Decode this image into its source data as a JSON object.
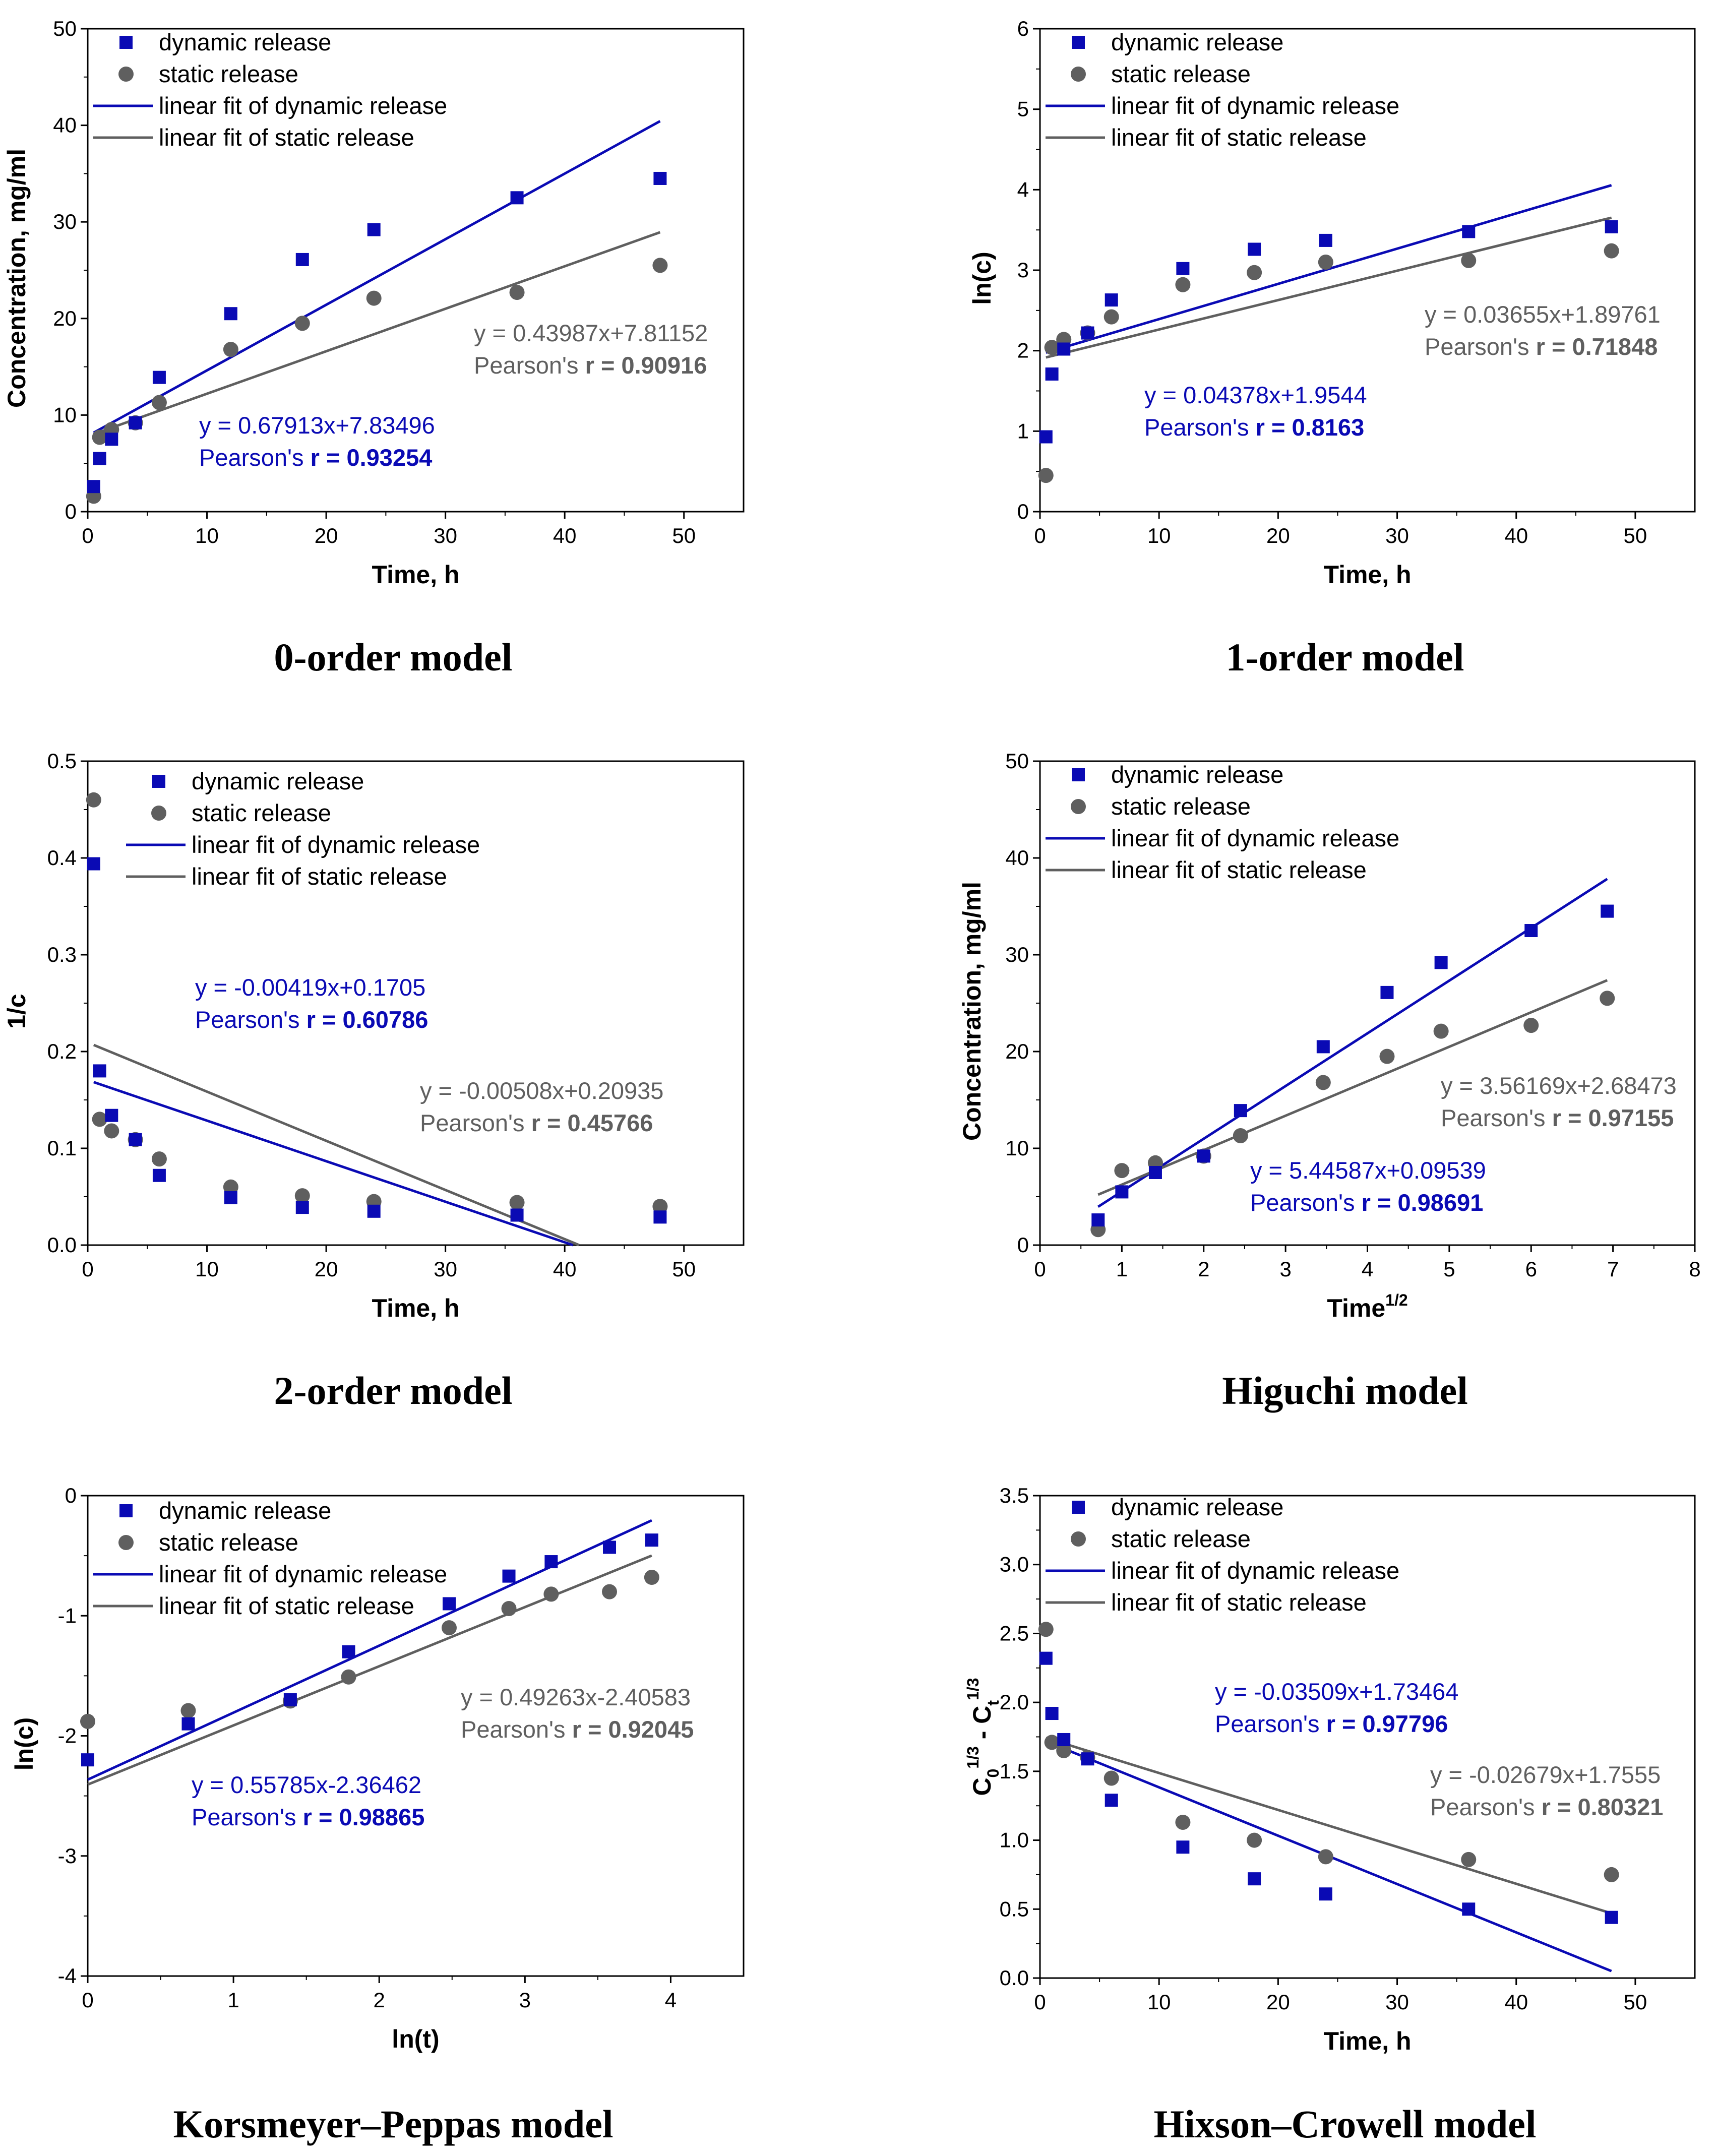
{
  "colors": {
    "dynamic": "#0a0ab4",
    "static": "#5f5f5f",
    "axis": "#000000"
  },
  "legend_labels": {
    "dynamic": "dynamic release",
    "static": "static release",
    "fit_dynamic": "linear fit of dynamic release",
    "fit_static": "linear fit of static release"
  },
  "chart_data": [
    {
      "type": "scatter",
      "title": "0-order model",
      "xlabel": "Time, h",
      "ylabel": "Concentration, mg/ml",
      "xlim": [
        0,
        55
      ],
      "ylim": [
        0,
        50
      ],
      "xticks": [
        0,
        10,
        20,
        30,
        40,
        50
      ],
      "yticks": [
        0,
        10,
        20,
        30,
        40,
        50
      ],
      "xticklabels": [
        "0",
        "10",
        "20",
        "30",
        "40",
        "50"
      ],
      "yticklabels": [
        "0",
        "10",
        "20",
        "30",
        "40",
        "50"
      ],
      "series": [
        {
          "name": "dynamic release",
          "x": [
            0.5,
            1,
            2,
            4,
            6,
            12,
            18,
            24,
            36,
            48
          ],
          "y": [
            2.6,
            5.5,
            7.5,
            9.2,
            13.9,
            20.5,
            26.1,
            29.2,
            32.5,
            34.5
          ]
        },
        {
          "name": "static release",
          "x": [
            0.5,
            1,
            2,
            4,
            6,
            12,
            18,
            24,
            36,
            48
          ],
          "y": [
            1.6,
            7.7,
            8.5,
            9.2,
            11.3,
            16.8,
            19.5,
            22.1,
            22.7,
            25.5
          ]
        }
      ],
      "fits": [
        {
          "name": "linear fit of dynamic release",
          "slope": 0.67913,
          "intercept": 7.83496,
          "x_range": [
            0.5,
            48
          ]
        },
        {
          "name": "linear fit of static release",
          "slope": 0.43987,
          "intercept": 7.81152,
          "x_range": [
            0.5,
            48
          ]
        }
      ],
      "annotations": {
        "dynamic_equation": "y = 0.67913x+7.83496",
        "dynamic_pearson_label": "Pearson's ",
        "dynamic_pearson_value": "r = 0.93254",
        "static_equation": "y = 0.43987x+7.81152",
        "static_pearson_label": "Pearson's ",
        "static_pearson_value": "r = 0.90916"
      }
    },
    {
      "type": "scatter",
      "title": "1-order model",
      "xlabel": "Time, h",
      "ylabel": "ln(c)",
      "xlim": [
        0,
        55
      ],
      "ylim": [
        0,
        6
      ],
      "xticks": [
        0,
        10,
        20,
        30,
        40,
        50
      ],
      "yticks": [
        0,
        1,
        2,
        3,
        4,
        5,
        6
      ],
      "xticklabels": [
        "0",
        "10",
        "20",
        "30",
        "40",
        "50"
      ],
      "yticklabels": [
        "0",
        "1",
        "2",
        "3",
        "4",
        "5",
        "6"
      ],
      "series": [
        {
          "name": "dynamic release",
          "x": [
            0.5,
            1,
            2,
            4,
            6,
            12,
            18,
            24,
            36,
            48
          ],
          "y": [
            0.93,
            1.71,
            2.02,
            2.22,
            2.63,
            3.02,
            3.26,
            3.37,
            3.48,
            3.54
          ]
        },
        {
          "name": "static release",
          "x": [
            0.5,
            1,
            2,
            4,
            6,
            12,
            18,
            24,
            36,
            48
          ],
          "y": [
            0.45,
            2.04,
            2.14,
            2.22,
            2.42,
            2.82,
            2.97,
            3.1,
            3.12,
            3.24
          ]
        }
      ],
      "fits": [
        {
          "name": "linear fit of dynamic release",
          "slope": 0.04378,
          "intercept": 1.9544,
          "x_range": [
            0.5,
            48
          ]
        },
        {
          "name": "linear fit of static release",
          "slope": 0.03655,
          "intercept": 1.89761,
          "x_range": [
            0.5,
            48
          ]
        }
      ],
      "annotations": {
        "dynamic_equation": "y = 0.04378x+1.9544",
        "dynamic_pearson_label": "Pearson's ",
        "dynamic_pearson_value": "r = 0.8163",
        "static_equation": "y = 0.03655x+1.89761",
        "static_pearson_label": "Pearson's ",
        "static_pearson_value": "r = 0.71848"
      }
    },
    {
      "type": "scatter",
      "title": "2-order model",
      "xlabel": "Time, h",
      "ylabel": "1/c",
      "xlim": [
        0,
        55
      ],
      "ylim": [
        0,
        0.5
      ],
      "xticks": [
        0,
        10,
        20,
        30,
        40,
        50
      ],
      "yticks": [
        0,
        0.1,
        0.2,
        0.3,
        0.4,
        0.5
      ],
      "xticklabels": [
        "0",
        "10",
        "20",
        "30",
        "40",
        "50"
      ],
      "yticklabels": [
        "0.0",
        "0.1",
        "0.2",
        "0.3",
        "0.4",
        "0.5"
      ],
      "series": [
        {
          "name": "dynamic release",
          "x": [
            0.5,
            1,
            2,
            4,
            6,
            12,
            18,
            24,
            36,
            48
          ],
          "y": [
            0.394,
            0.18,
            0.134,
            0.109,
            0.072,
            0.049,
            0.039,
            0.035,
            0.031,
            0.029
          ]
        },
        {
          "name": "static release",
          "x": [
            0.5,
            1,
            2,
            4,
            6,
            12,
            18,
            24,
            36,
            48
          ],
          "y": [
            0.46,
            0.13,
            0.118,
            0.109,
            0.089,
            0.06,
            0.051,
            0.045,
            0.044,
            0.04
          ]
        }
      ],
      "fits": [
        {
          "name": "linear fit of dynamic release",
          "slope": -0.00419,
          "intercept": 0.1705,
          "x_range": [
            0.5,
            40.7
          ]
        },
        {
          "name": "linear fit of static release",
          "slope": -0.00508,
          "intercept": 0.20935,
          "x_range": [
            0.5,
            41.2
          ]
        }
      ],
      "annotations": {
        "dynamic_equation": "y = -0.00419x+0.1705",
        "dynamic_pearson_label": "Pearson's ",
        "dynamic_pearson_value": "r = 0.60786",
        "static_equation": "y = -0.00508x+0.20935",
        "static_pearson_label": "Pearson's ",
        "static_pearson_value": "r = 0.45766"
      }
    },
    {
      "type": "scatter",
      "title": "Higuchi model",
      "xlabel": "Time",
      "xlabel_superscript": "1/2",
      "ylabel": "Concentration, mg/ml",
      "xlim": [
        0,
        8
      ],
      "ylim": [
        0,
        50
      ],
      "xticks": [
        0,
        1,
        2,
        3,
        4,
        5,
        6,
        7,
        8
      ],
      "yticks": [
        0,
        10,
        20,
        30,
        40,
        50
      ],
      "xticklabels": [
        "0",
        "1",
        "2",
        "3",
        "4",
        "5",
        "6",
        "7",
        "8"
      ],
      "yticklabels": [
        "0",
        "10",
        "20",
        "30",
        "40",
        "50"
      ],
      "series": [
        {
          "name": "dynamic release",
          "x": [
            0.71,
            1,
            1.41,
            2,
            2.45,
            3.46,
            4.24,
            4.9,
            6,
            6.93
          ],
          "y": [
            2.6,
            5.5,
            7.5,
            9.2,
            13.9,
            20.5,
            26.1,
            29.2,
            32.5,
            34.5
          ]
        },
        {
          "name": "static release",
          "x": [
            0.71,
            1,
            1.41,
            2,
            2.45,
            3.46,
            4.24,
            4.9,
            6,
            6.93
          ],
          "y": [
            1.6,
            7.7,
            8.5,
            9.2,
            11.3,
            16.8,
            19.5,
            22.1,
            22.7,
            25.5
          ]
        }
      ],
      "fits": [
        {
          "name": "linear fit of dynamic release",
          "slope": 5.44587,
          "intercept": 0.09539,
          "x_range": [
            0.71,
            6.93
          ]
        },
        {
          "name": "linear fit of static release",
          "slope": 3.56169,
          "intercept": 2.68473,
          "x_range": [
            0.71,
            6.93
          ]
        }
      ],
      "annotations": {
        "dynamic_equation": "y = 5.44587x+0.09539",
        "dynamic_pearson_label": "Pearson's ",
        "dynamic_pearson_value": "r = 0.98691",
        "static_equation": "y = 3.56169x+2.68473",
        "static_pearson_label": "Pearson's ",
        "static_pearson_value": "r = 0.97155"
      }
    },
    {
      "type": "scatter",
      "title": "Korsmeyer–Peppas model",
      "xlabel": "ln(t)",
      "ylabel": "ln(c)",
      "xlim": [
        0,
        4.5
      ],
      "ylim": [
        -4,
        0
      ],
      "xticks": [
        0,
        1,
        2,
        3,
        4
      ],
      "yticks": [
        -4,
        -3,
        -2,
        -1,
        0
      ],
      "xticklabels": [
        "0",
        "1",
        "2",
        "3",
        "4"
      ],
      "yticklabels": [
        "-4",
        "-3",
        "-2",
        "-1",
        "0"
      ],
      "series": [
        {
          "name": "dynamic release",
          "x": [
            0,
            0.69,
            1.39,
            1.79,
            2.48,
            2.89,
            3.18,
            3.58,
            3.87
          ],
          "y": [
            -2.2,
            -1.9,
            -1.7,
            -1.3,
            -0.9,
            -0.67,
            -0.55,
            -0.43,
            -0.37
          ]
        },
        {
          "name": "static release",
          "x": [
            0,
            0.69,
            1.39,
            1.79,
            2.48,
            2.89,
            3.18,
            3.58,
            3.87
          ],
          "y": [
            -1.88,
            -1.79,
            -1.71,
            -1.51,
            -1.1,
            -0.94,
            -0.82,
            -0.8,
            -0.68
          ]
        }
      ],
      "fits": [
        {
          "name": "linear fit of dynamic release",
          "slope": 0.55785,
          "intercept": -2.36462,
          "x_range": [
            0,
            3.87
          ]
        },
        {
          "name": "linear fit of static release",
          "slope": 0.49263,
          "intercept": -2.40583,
          "x_range": [
            0,
            3.87
          ]
        }
      ],
      "annotations": {
        "dynamic_equation": "y = 0.55785x-2.36462",
        "dynamic_pearson_label": "Pearson's ",
        "dynamic_pearson_value": "r = 0.98865",
        "static_equation": "y = 0.49263x-2.40583",
        "static_pearson_label": "Pearson's ",
        "static_pearson_value": "r = 0.92045"
      }
    },
    {
      "type": "scatter",
      "title": "Hixson–Crowell model",
      "xlabel": "Time, h",
      "ylabel": "C",
      "ylabel_parts": [
        "C",
        "0",
        "1/3",
        " - C",
        "t",
        "1/3"
      ],
      "xlim": [
        0,
        55
      ],
      "ylim": [
        0,
        3.5
      ],
      "xticks": [
        0,
        10,
        20,
        30,
        40,
        50
      ],
      "yticks": [
        0,
        0.5,
        1,
        1.5,
        2,
        2.5,
        3,
        3.5
      ],
      "xticklabels": [
        "0",
        "10",
        "20",
        "30",
        "40",
        "50"
      ],
      "yticklabels": [
        "0.0",
        "0.5",
        "1.0",
        "1.5",
        "2.0",
        "2.5",
        "3.0",
        "3.5"
      ],
      "series": [
        {
          "name": "dynamic release",
          "x": [
            0.5,
            1,
            2,
            4,
            6,
            12,
            18,
            24,
            36,
            48
          ],
          "y": [
            2.32,
            1.92,
            1.73,
            1.59,
            1.29,
            0.95,
            0.72,
            0.61,
            0.5,
            0.44
          ]
        },
        {
          "name": "static release",
          "x": [
            0.5,
            1,
            2,
            4,
            6,
            12,
            18,
            24,
            36,
            48
          ],
          "y": [
            2.53,
            1.71,
            1.65,
            1.6,
            1.45,
            1.13,
            1.0,
            0.88,
            0.86,
            0.75
          ]
        }
      ],
      "fits": [
        {
          "name": "linear fit of dynamic release",
          "slope": -0.03509,
          "intercept": 1.73464,
          "x_range": [
            0.5,
            48
          ]
        },
        {
          "name": "linear fit of static release",
          "slope": -0.02679,
          "intercept": 1.7555,
          "x_range": [
            0.5,
            48
          ]
        }
      ],
      "annotations": {
        "dynamic_equation": "y = -0.03509x+1.73464",
        "dynamic_pearson_label": "Pearson's ",
        "dynamic_pearson_value": "r = 0.97796",
        "static_equation": "y = -0.02679x+1.7555",
        "static_pearson_label": "Pearson's ",
        "static_pearson_value": "r = 0.80321"
      }
    }
  ]
}
